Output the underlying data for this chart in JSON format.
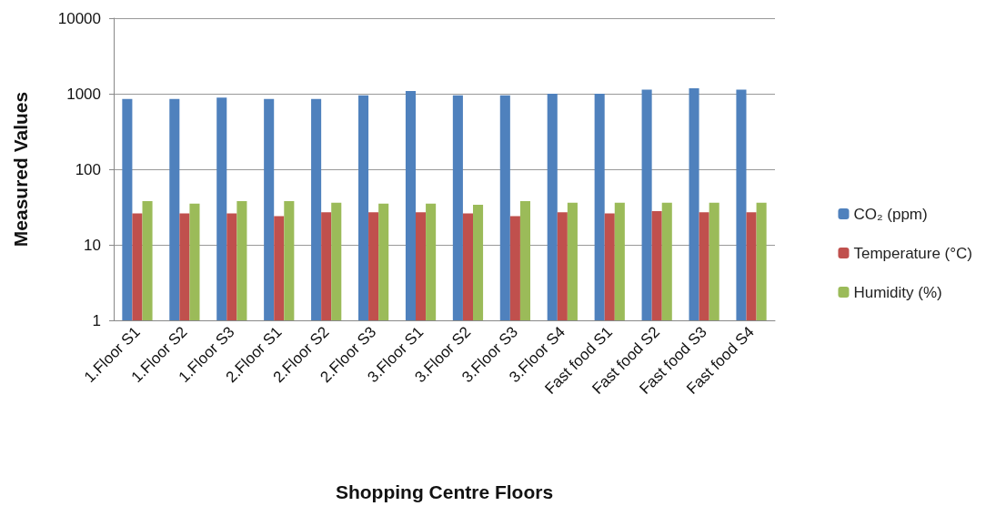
{
  "chart_data": {
    "type": "bar",
    "xlabel": "Shopping Centre Floors",
    "ylabel": "Measured Values",
    "categories": [
      "1.Floor S1",
      "1.Floor S2",
      "1.Floor S3",
      "2.Floor S1",
      "2.Floor S2",
      "2.Floor S3",
      "3.Floor S1",
      "3.Floor S2",
      "3.Floor S3",
      "3.Floor S4",
      "Fast food S1",
      "Fast food S2",
      "Fast food S3",
      "Fast food S4"
    ],
    "series": [
      {
        "name": "CO₂ (ppm)",
        "color": "#4f81bd",
        "values": [
          850,
          850,
          890,
          850,
          850,
          950,
          1090,
          950,
          950,
          1000,
          1000,
          1130,
          1180,
          1130
        ]
      },
      {
        "name": "Temperature (°C)",
        "color": "#c0504d",
        "values": [
          26,
          26,
          26,
          24,
          27,
          27,
          27,
          26,
          24,
          27,
          26,
          28,
          27,
          27
        ]
      },
      {
        "name": "Humidity (%)",
        "color": "#9bbb59",
        "values": [
          38,
          35,
          38,
          38,
          36,
          35,
          35,
          34,
          38,
          36,
          36,
          36,
          36,
          36
        ]
      }
    ],
    "log": true,
    "ylim": [
      1,
      10000
    ],
    "yticks": [
      1,
      10,
      100,
      1000,
      10000
    ],
    "grid": "y",
    "legend": "right"
  }
}
